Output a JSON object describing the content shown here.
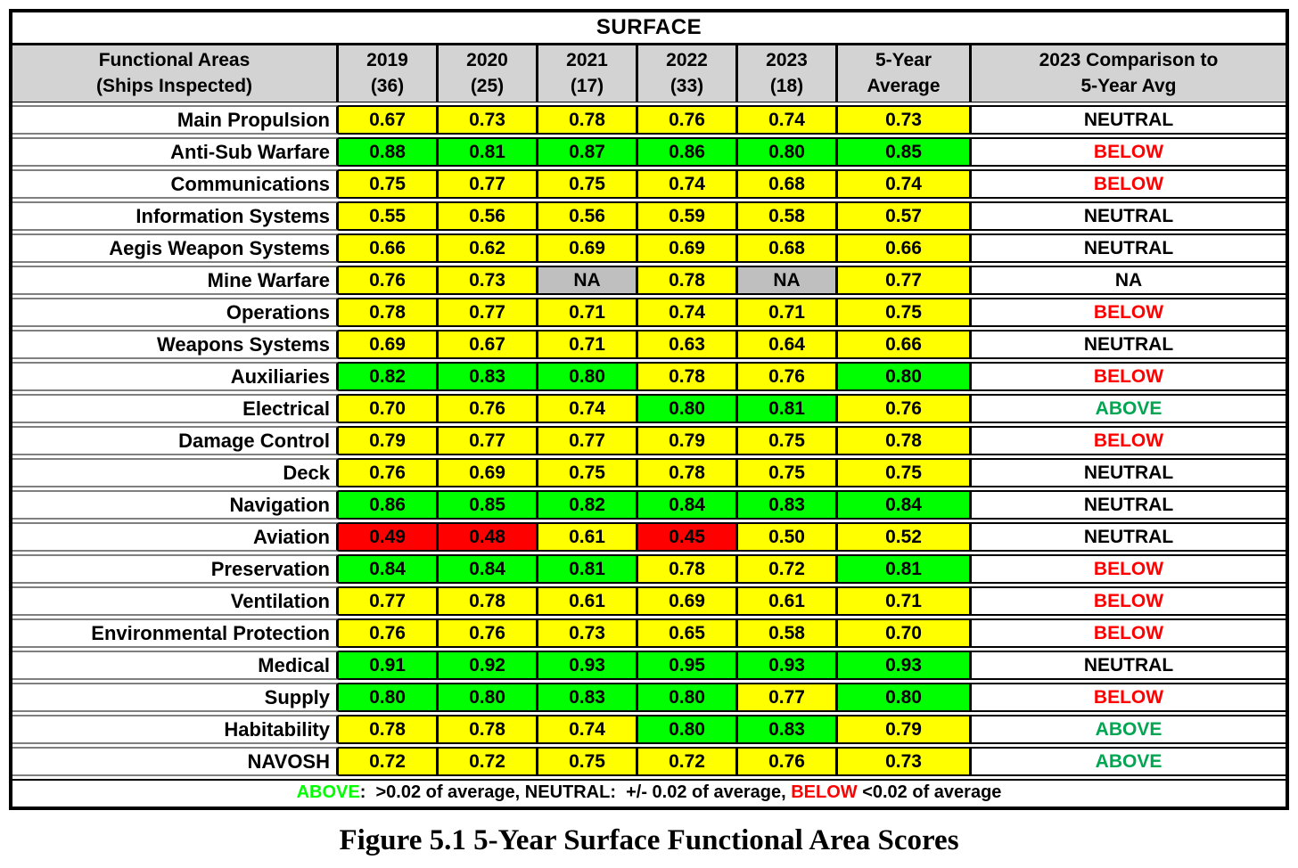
{
  "colors": {
    "bg_yellow": "#FFFF00",
    "bg_green": "#00FF00",
    "bg_red": "#FF0000",
    "bg_na": "#BFBFBF",
    "header_bg": "#D3D3D3",
    "cmp_neutral": "#000000",
    "cmp_above": "#00A651",
    "cmp_below": "#FF0000",
    "cmp_na": "#000000",
    "legend_above": "#00FF00",
    "legend_below": "#FF0000"
  },
  "table": {
    "title": "SURFACE",
    "header": {
      "area_col": {
        "line1": "Functional Areas",
        "line2": "(Ships Inspected)"
      },
      "year_cols": [
        {
          "line1": "2019",
          "line2": "(36)"
        },
        {
          "line1": "2020",
          "line2": "(25)"
        },
        {
          "line1": "2021",
          "line2": "(17)"
        },
        {
          "line1": "2022",
          "line2": "(33)"
        },
        {
          "line1": "2023",
          "line2": "(18)"
        },
        {
          "line1": "5-Year",
          "line2": "Average"
        },
        {
          "line1": "2023 Comparison to",
          "line2": "5-Year Avg"
        }
      ]
    },
    "rows": [
      {
        "area": "Main Propulsion",
        "scores": [
          {
            "v": "0.67",
            "c": "yellow"
          },
          {
            "v": "0.73",
            "c": "yellow"
          },
          {
            "v": "0.78",
            "c": "yellow"
          },
          {
            "v": "0.76",
            "c": "yellow"
          },
          {
            "v": "0.74",
            "c": "yellow"
          },
          {
            "v": "0.73",
            "c": "yellow"
          }
        ],
        "comparison": {
          "v": "NEUTRAL",
          "c": "neutral"
        }
      },
      {
        "area": "Anti-Sub Warfare",
        "scores": [
          {
            "v": "0.88",
            "c": "green"
          },
          {
            "v": "0.81",
            "c": "green"
          },
          {
            "v": "0.87",
            "c": "green"
          },
          {
            "v": "0.86",
            "c": "green"
          },
          {
            "v": "0.80",
            "c": "green"
          },
          {
            "v": "0.85",
            "c": "green"
          }
        ],
        "comparison": {
          "v": "BELOW",
          "c": "below"
        }
      },
      {
        "area": "Communications",
        "scores": [
          {
            "v": "0.75",
            "c": "yellow"
          },
          {
            "v": "0.77",
            "c": "yellow"
          },
          {
            "v": "0.75",
            "c": "yellow"
          },
          {
            "v": "0.74",
            "c": "yellow"
          },
          {
            "v": "0.68",
            "c": "yellow"
          },
          {
            "v": "0.74",
            "c": "yellow"
          }
        ],
        "comparison": {
          "v": "BELOW",
          "c": "below"
        }
      },
      {
        "area": "Information Systems",
        "scores": [
          {
            "v": "0.55",
            "c": "yellow"
          },
          {
            "v": "0.56",
            "c": "yellow"
          },
          {
            "v": "0.56",
            "c": "yellow"
          },
          {
            "v": "0.59",
            "c": "yellow"
          },
          {
            "v": "0.58",
            "c": "yellow"
          },
          {
            "v": "0.57",
            "c": "yellow"
          }
        ],
        "comparison": {
          "v": "NEUTRAL",
          "c": "neutral"
        }
      },
      {
        "area": "Aegis Weapon Systems",
        "scores": [
          {
            "v": "0.66",
            "c": "yellow"
          },
          {
            "v": "0.62",
            "c": "yellow"
          },
          {
            "v": "0.69",
            "c": "yellow"
          },
          {
            "v": "0.69",
            "c": "yellow"
          },
          {
            "v": "0.68",
            "c": "yellow"
          },
          {
            "v": "0.66",
            "c": "yellow"
          }
        ],
        "comparison": {
          "v": "NEUTRAL",
          "c": "neutral"
        }
      },
      {
        "area": "Mine Warfare",
        "scores": [
          {
            "v": "0.76",
            "c": "yellow"
          },
          {
            "v": "0.73",
            "c": "yellow"
          },
          {
            "v": "NA",
            "c": "na"
          },
          {
            "v": "0.78",
            "c": "yellow"
          },
          {
            "v": "NA",
            "c": "na"
          },
          {
            "v": "0.77",
            "c": "yellow"
          }
        ],
        "comparison": {
          "v": "NA",
          "c": "na"
        }
      },
      {
        "area": "Operations",
        "scores": [
          {
            "v": "0.78",
            "c": "yellow"
          },
          {
            "v": "0.77",
            "c": "yellow"
          },
          {
            "v": "0.71",
            "c": "yellow"
          },
          {
            "v": "0.74",
            "c": "yellow"
          },
          {
            "v": "0.71",
            "c": "yellow"
          },
          {
            "v": "0.75",
            "c": "yellow"
          }
        ],
        "comparison": {
          "v": "BELOW",
          "c": "below"
        }
      },
      {
        "area": "Weapons Systems",
        "scores": [
          {
            "v": "0.69",
            "c": "yellow"
          },
          {
            "v": "0.67",
            "c": "yellow"
          },
          {
            "v": "0.71",
            "c": "yellow"
          },
          {
            "v": "0.63",
            "c": "yellow"
          },
          {
            "v": "0.64",
            "c": "yellow"
          },
          {
            "v": "0.66",
            "c": "yellow"
          }
        ],
        "comparison": {
          "v": "NEUTRAL",
          "c": "neutral"
        }
      },
      {
        "area": "Auxiliaries",
        "scores": [
          {
            "v": "0.82",
            "c": "green"
          },
          {
            "v": "0.83",
            "c": "green"
          },
          {
            "v": "0.80",
            "c": "green"
          },
          {
            "v": "0.78",
            "c": "yellow"
          },
          {
            "v": "0.76",
            "c": "yellow"
          },
          {
            "v": "0.80",
            "c": "green"
          }
        ],
        "comparison": {
          "v": "BELOW",
          "c": "below"
        }
      },
      {
        "area": "Electrical",
        "scores": [
          {
            "v": "0.70",
            "c": "yellow"
          },
          {
            "v": "0.76",
            "c": "yellow"
          },
          {
            "v": "0.74",
            "c": "yellow"
          },
          {
            "v": "0.80",
            "c": "green"
          },
          {
            "v": "0.81",
            "c": "green"
          },
          {
            "v": "0.76",
            "c": "yellow"
          }
        ],
        "comparison": {
          "v": "ABOVE",
          "c": "above"
        }
      },
      {
        "area": "Damage Control",
        "scores": [
          {
            "v": "0.79",
            "c": "yellow"
          },
          {
            "v": "0.77",
            "c": "yellow"
          },
          {
            "v": "0.77",
            "c": "yellow"
          },
          {
            "v": "0.79",
            "c": "yellow"
          },
          {
            "v": "0.75",
            "c": "yellow"
          },
          {
            "v": "0.78",
            "c": "yellow"
          }
        ],
        "comparison": {
          "v": "BELOW",
          "c": "below"
        }
      },
      {
        "area": "Deck",
        "scores": [
          {
            "v": "0.76",
            "c": "yellow"
          },
          {
            "v": "0.69",
            "c": "yellow"
          },
          {
            "v": "0.75",
            "c": "yellow"
          },
          {
            "v": "0.78",
            "c": "yellow"
          },
          {
            "v": "0.75",
            "c": "yellow"
          },
          {
            "v": "0.75",
            "c": "yellow"
          }
        ],
        "comparison": {
          "v": "NEUTRAL",
          "c": "neutral"
        }
      },
      {
        "area": "Navigation",
        "scores": [
          {
            "v": "0.86",
            "c": "green"
          },
          {
            "v": "0.85",
            "c": "green"
          },
          {
            "v": "0.82",
            "c": "green"
          },
          {
            "v": "0.84",
            "c": "green"
          },
          {
            "v": "0.83",
            "c": "green"
          },
          {
            "v": "0.84",
            "c": "green"
          }
        ],
        "comparison": {
          "v": "NEUTRAL",
          "c": "neutral"
        }
      },
      {
        "area": "Aviation",
        "scores": [
          {
            "v": "0.49",
            "c": "red"
          },
          {
            "v": "0.48",
            "c": "red"
          },
          {
            "v": "0.61",
            "c": "yellow"
          },
          {
            "v": "0.45",
            "c": "red"
          },
          {
            "v": "0.50",
            "c": "yellow"
          },
          {
            "v": "0.52",
            "c": "yellow"
          }
        ],
        "comparison": {
          "v": "NEUTRAL",
          "c": "neutral"
        }
      },
      {
        "area": "Preservation",
        "scores": [
          {
            "v": "0.84",
            "c": "green"
          },
          {
            "v": "0.84",
            "c": "green"
          },
          {
            "v": "0.81",
            "c": "green"
          },
          {
            "v": "0.78",
            "c": "yellow"
          },
          {
            "v": "0.72",
            "c": "yellow"
          },
          {
            "v": "0.81",
            "c": "green"
          }
        ],
        "comparison": {
          "v": "BELOW",
          "c": "below"
        }
      },
      {
        "area": "Ventilation",
        "scores": [
          {
            "v": "0.77",
            "c": "yellow"
          },
          {
            "v": "0.78",
            "c": "yellow"
          },
          {
            "v": "0.61",
            "c": "yellow"
          },
          {
            "v": "0.69",
            "c": "yellow"
          },
          {
            "v": "0.61",
            "c": "yellow"
          },
          {
            "v": "0.71",
            "c": "yellow"
          }
        ],
        "comparison": {
          "v": "BELOW",
          "c": "below"
        }
      },
      {
        "area": "Environmental Protection",
        "scores": [
          {
            "v": "0.76",
            "c": "yellow"
          },
          {
            "v": "0.76",
            "c": "yellow"
          },
          {
            "v": "0.73",
            "c": "yellow"
          },
          {
            "v": "0.65",
            "c": "yellow"
          },
          {
            "v": "0.58",
            "c": "yellow"
          },
          {
            "v": "0.70",
            "c": "yellow"
          }
        ],
        "comparison": {
          "v": "BELOW",
          "c": "below"
        }
      },
      {
        "area": "Medical",
        "scores": [
          {
            "v": "0.91",
            "c": "green"
          },
          {
            "v": "0.92",
            "c": "green"
          },
          {
            "v": "0.93",
            "c": "green"
          },
          {
            "v": "0.95",
            "c": "green"
          },
          {
            "v": "0.93",
            "c": "green"
          },
          {
            "v": "0.93",
            "c": "green"
          }
        ],
        "comparison": {
          "v": "NEUTRAL",
          "c": "neutral"
        }
      },
      {
        "area": "Supply",
        "scores": [
          {
            "v": "0.80",
            "c": "green"
          },
          {
            "v": "0.80",
            "c": "green"
          },
          {
            "v": "0.83",
            "c": "green"
          },
          {
            "v": "0.80",
            "c": "green"
          },
          {
            "v": "0.77",
            "c": "yellow"
          },
          {
            "v": "0.80",
            "c": "green"
          }
        ],
        "comparison": {
          "v": "BELOW",
          "c": "below"
        }
      },
      {
        "area": "Habitability",
        "scores": [
          {
            "v": "0.78",
            "c": "yellow"
          },
          {
            "v": "0.78",
            "c": "yellow"
          },
          {
            "v": "0.74",
            "c": "yellow"
          },
          {
            "v": "0.80",
            "c": "green"
          },
          {
            "v": "0.83",
            "c": "green"
          },
          {
            "v": "0.79",
            "c": "yellow"
          }
        ],
        "comparison": {
          "v": "ABOVE",
          "c": "above"
        }
      },
      {
        "area": "NAVOSH",
        "scores": [
          {
            "v": "0.72",
            "c": "yellow"
          },
          {
            "v": "0.72",
            "c": "yellow"
          },
          {
            "v": "0.75",
            "c": "yellow"
          },
          {
            "v": "0.72",
            "c": "yellow"
          },
          {
            "v": "0.76",
            "c": "yellow"
          },
          {
            "v": "0.73",
            "c": "yellow"
          }
        ],
        "comparison": {
          "v": "ABOVE",
          "c": "above"
        }
      }
    ],
    "legend_segments": [
      {
        "text": "ABOVE",
        "c": "legend_above"
      },
      {
        "text": ":  >0.02 of average, NEUTRAL:  +/- 0.02 of average, ",
        "c": "black"
      },
      {
        "text": "BELOW",
        "c": "legend_below"
      },
      {
        "text": " <0.02 of average",
        "c": "black"
      }
    ]
  },
  "caption": "Figure 5.1 5-Year Surface Functional Area Scores"
}
